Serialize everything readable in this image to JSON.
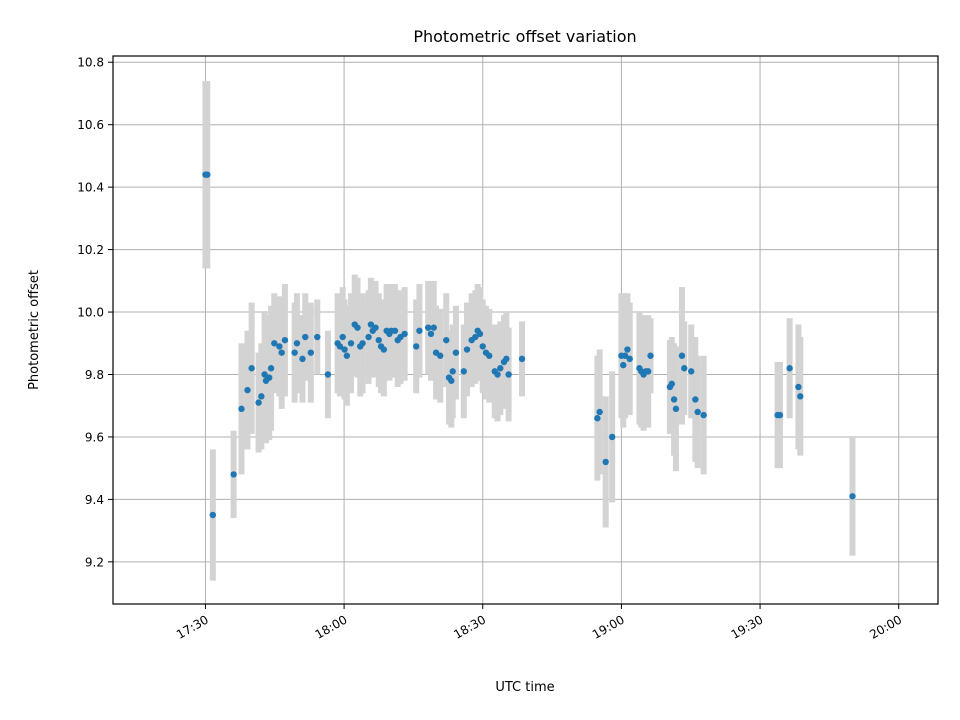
{
  "chart_data": {
    "type": "scatter",
    "title": "Photometric offset variation",
    "xlabel": "UTC time",
    "ylabel": "Photometric offset",
    "x_unit": "minutes",
    "xlim": [
      1030,
      1208.5
    ],
    "ylim": [
      9.065,
      10.82
    ],
    "xticks": [
      1050,
      1080,
      1110,
      1140,
      1170,
      1200
    ],
    "xtick_labels": [
      "17:30",
      "18:00",
      "18:30",
      "19:00",
      "19:30",
      "20:00"
    ],
    "yticks": [
      9.2,
      9.4,
      9.6,
      9.8,
      10.0,
      10.2,
      10.4,
      10.6,
      10.8
    ],
    "ytick_labels": [
      "9.2",
      "9.4",
      "9.6",
      "9.8",
      "10.0",
      "10.2",
      "10.4",
      "10.6",
      "10.8"
    ],
    "grid": true,
    "colors": {
      "points": "#1f77b4",
      "errorbars": "#d3d3d3",
      "grid": "#b0b0b0"
    },
    "series": [
      {
        "points": [
          [
            1050.0,
            10.44,
            0.3
          ],
          [
            1050.4,
            10.44,
            0.3
          ],
          [
            1051.6,
            9.35,
            0.21
          ],
          [
            1056.1,
            9.48,
            0.14
          ],
          [
            1057.8,
            9.69,
            0.21
          ],
          [
            1059.1,
            9.75,
            0.19
          ],
          [
            1060.0,
            9.82,
            0.21
          ],
          [
            1061.5,
            9.71,
            0.16
          ],
          [
            1062.1,
            9.73,
            0.17
          ],
          [
            1062.8,
            9.8,
            0.2
          ],
          [
            1063.1,
            9.78,
            0.2
          ],
          [
            1063.8,
            9.79,
            0.2
          ],
          [
            1064.2,
            9.82,
            0.2
          ],
          [
            1064.9,
            9.9,
            0.16
          ],
          [
            1066.0,
            9.89,
            0.16
          ],
          [
            1066.5,
            9.87,
            0.18
          ],
          [
            1067.2,
            9.91,
            0.18
          ],
          [
            1069.3,
            9.87,
            0.16
          ],
          [
            1069.8,
            9.9,
            0.16
          ],
          [
            1071.0,
            9.85,
            0.14
          ],
          [
            1071.6,
            9.92,
            0.14
          ],
          [
            1072.8,
            9.87,
            0.16
          ],
          [
            1074.2,
            9.92,
            0.12
          ],
          [
            1076.5,
            9.8,
            0.14
          ],
          [
            1078.6,
            9.9,
            0.16
          ],
          [
            1079.1,
            9.89,
            0.16
          ],
          [
            1079.7,
            9.92,
            0.16
          ],
          [
            1080.1,
            9.88,
            0.16
          ],
          [
            1080.6,
            9.86,
            0.16
          ],
          [
            1081.5,
            9.9,
            0.16
          ],
          [
            1082.3,
            9.96,
            0.16
          ],
          [
            1082.9,
            9.95,
            0.16
          ],
          [
            1083.5,
            9.89,
            0.16
          ],
          [
            1084.0,
            9.9,
            0.16
          ],
          [
            1085.3,
            9.92,
            0.15
          ],
          [
            1085.8,
            9.96,
            0.15
          ],
          [
            1086.2,
            9.94,
            0.15
          ],
          [
            1086.8,
            9.95,
            0.15
          ],
          [
            1087.5,
            9.91,
            0.15
          ],
          [
            1088.0,
            9.89,
            0.15
          ],
          [
            1088.6,
            9.88,
            0.15
          ],
          [
            1089.2,
            9.94,
            0.15
          ],
          [
            1089.8,
            9.93,
            0.15
          ],
          [
            1090.2,
            9.94,
            0.15
          ],
          [
            1091.0,
            9.94,
            0.15
          ],
          [
            1091.6,
            9.91,
            0.15
          ],
          [
            1092.2,
            9.92,
            0.15
          ],
          [
            1093.1,
            9.93,
            0.15
          ],
          [
            1095.6,
            9.89,
            0.15
          ],
          [
            1096.3,
            9.94,
            0.15
          ],
          [
            1098.2,
            9.95,
            0.15
          ],
          [
            1098.8,
            9.93,
            0.15
          ],
          [
            1099.4,
            9.95,
            0.15
          ],
          [
            1099.9,
            9.87,
            0.15
          ],
          [
            1100.8,
            9.86,
            0.15
          ],
          [
            1102.1,
            9.91,
            0.15
          ],
          [
            1102.7,
            9.79,
            0.15
          ],
          [
            1103.2,
            9.78,
            0.15
          ],
          [
            1103.5,
            9.81,
            0.15
          ],
          [
            1104.2,
            9.87,
            0.15
          ],
          [
            1105.9,
            9.81,
            0.15
          ],
          [
            1106.6,
            9.88,
            0.15
          ],
          [
            1107.6,
            9.91,
            0.15
          ],
          [
            1108.4,
            9.92,
            0.15
          ],
          [
            1108.9,
            9.94,
            0.15
          ],
          [
            1109.4,
            9.93,
            0.15
          ],
          [
            1110.0,
            9.89,
            0.15
          ],
          [
            1110.7,
            9.87,
            0.15
          ],
          [
            1111.4,
            9.86,
            0.15
          ],
          [
            1112.6,
            9.81,
            0.15
          ],
          [
            1113.2,
            9.8,
            0.15
          ],
          [
            1113.8,
            9.82,
            0.15
          ],
          [
            1114.6,
            9.84,
            0.15
          ],
          [
            1115.1,
            9.85,
            0.15
          ],
          [
            1115.6,
            9.8,
            0.15
          ],
          [
            1118.5,
            9.85,
            0.12
          ],
          [
            1134.8,
            9.66,
            0.2
          ],
          [
            1135.3,
            9.68,
            0.2
          ],
          [
            1136.6,
            9.52,
            0.21
          ],
          [
            1138.0,
            9.6,
            0.21
          ],
          [
            1140.0,
            9.86,
            0.2
          ],
          [
            1140.4,
            9.83,
            0.2
          ],
          [
            1140.8,
            9.86,
            0.2
          ],
          [
            1141.3,
            9.88,
            0.18
          ],
          [
            1141.8,
            9.85,
            0.18
          ],
          [
            1143.9,
            9.82,
            0.18
          ],
          [
            1144.3,
            9.81,
            0.18
          ],
          [
            1144.8,
            9.8,
            0.18
          ],
          [
            1145.3,
            9.81,
            0.18
          ],
          [
            1145.8,
            9.81,
            0.18
          ],
          [
            1146.3,
            9.86,
            0.12
          ],
          [
            1150.5,
            9.76,
            0.15
          ],
          [
            1150.9,
            9.77,
            0.15
          ],
          [
            1151.4,
            9.72,
            0.18
          ],
          [
            1151.8,
            9.69,
            0.2
          ],
          [
            1153.1,
            9.86,
            0.22
          ],
          [
            1153.6,
            9.82,
            0.15
          ],
          [
            1155.1,
            9.81,
            0.15
          ],
          [
            1156.0,
            9.72,
            0.2
          ],
          [
            1156.5,
            9.68,
            0.18
          ],
          [
            1157.8,
            9.67,
            0.19
          ],
          [
            1173.8,
            9.67,
            0.17
          ],
          [
            1174.3,
            9.67,
            0.17
          ],
          [
            1176.4,
            9.82,
            0.16
          ],
          [
            1178.3,
            9.76,
            0.2
          ],
          [
            1178.7,
            9.73,
            0.19
          ],
          [
            1190.0,
            9.41,
            0.19
          ]
        ]
      }
    ]
  }
}
